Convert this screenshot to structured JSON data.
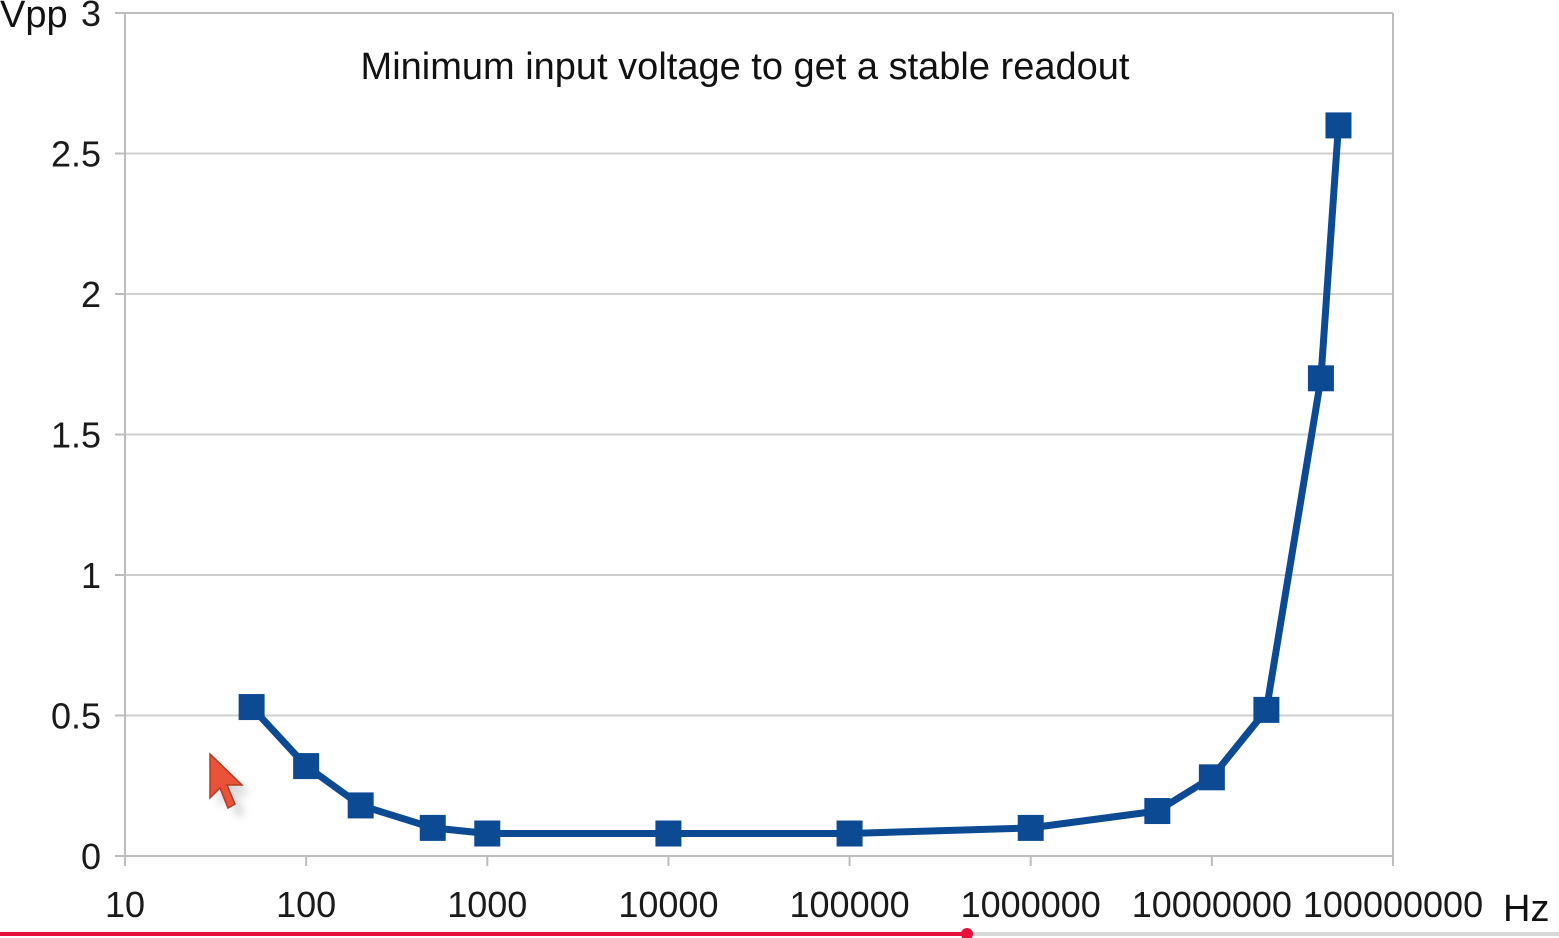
{
  "chart_data": {
    "type": "line",
    "title": "Minimum input voltage to get a stable readout",
    "ylabel": "Vpp",
    "xlabel": "Hz",
    "x_scale": "log",
    "xlim": [
      10,
      100000000
    ],
    "ylim": [
      0,
      3
    ],
    "x_ticks": [
      "10",
      "100",
      "1000",
      "10000",
      "100000",
      "1000000",
      "10000000",
      "100000000"
    ],
    "y_ticks": [
      "0",
      "0.5",
      "1",
      "1.5",
      "2",
      "2.5",
      "3"
    ],
    "grid": true,
    "series": [
      {
        "color": "#0d4a94",
        "marker": "square",
        "points": [
          {
            "x": 50,
            "y": 0.53
          },
          {
            "x": 100,
            "y": 0.32
          },
          {
            "x": 200,
            "y": 0.18
          },
          {
            "x": 500,
            "y": 0.1
          },
          {
            "x": 1000,
            "y": 0.08
          },
          {
            "x": 10000,
            "y": 0.08
          },
          {
            "x": 100000,
            "y": 0.08
          },
          {
            "x": 1000000,
            "y": 0.1
          },
          {
            "x": 5000000,
            "y": 0.16
          },
          {
            "x": 10000000,
            "y": 0.28
          },
          {
            "x": 20000000,
            "y": 0.52
          },
          {
            "x": 40000000,
            "y": 1.7
          },
          {
            "x": 50000000,
            "y": 2.6
          }
        ]
      }
    ]
  },
  "overlay": {
    "cursor_icon": "mouse-pointer-icon",
    "cursor_color": "#e8533a",
    "video_progress": 0.62,
    "progress_color": "#e8113a"
  }
}
